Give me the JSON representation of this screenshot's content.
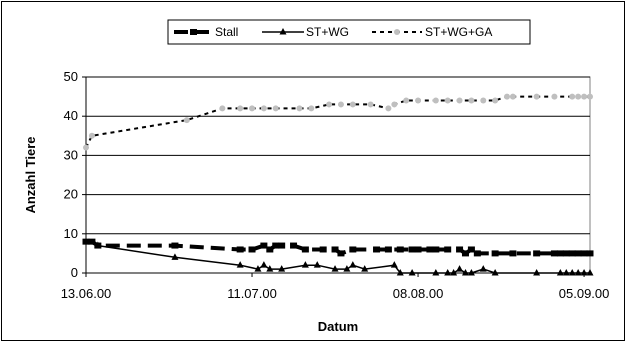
{
  "chart_data": {
    "type": "line",
    "xlabel": "Datum",
    "ylabel": "Anzahl Tiere",
    "ylim": [
      0,
      50
    ],
    "yticks": [
      "0",
      "10",
      "20",
      "30",
      "40",
      "50"
    ],
    "xlim": [
      "2000-06-13",
      "2000-09-06"
    ],
    "xticks": [
      "13.06.00",
      "11.07.00",
      "08.08.00",
      "05.09.00"
    ],
    "grid": "horizontal",
    "legend_position": "top",
    "series": [
      {
        "name": "Stall",
        "color": "#000000",
        "style": "thick-dash",
        "points": [
          [
            "2000-06-13",
            8
          ],
          [
            "2000-06-14",
            8
          ],
          [
            "2000-06-15",
            7
          ],
          [
            "2000-06-28",
            7
          ],
          [
            "2000-07-09",
            6
          ],
          [
            "2000-07-11",
            6
          ],
          [
            "2000-07-13",
            7
          ],
          [
            "2000-07-14",
            6
          ],
          [
            "2000-07-15",
            7
          ],
          [
            "2000-07-16",
            7
          ],
          [
            "2000-07-18",
            7
          ],
          [
            "2000-07-20",
            6
          ],
          [
            "2000-07-23",
            6
          ],
          [
            "2000-07-25",
            6
          ],
          [
            "2000-07-26",
            5
          ],
          [
            "2000-07-28",
            6
          ],
          [
            "2000-08-01",
            6
          ],
          [
            "2000-08-03",
            6
          ],
          [
            "2000-08-05",
            6
          ],
          [
            "2000-08-07",
            6
          ],
          [
            "2000-08-08",
            6
          ],
          [
            "2000-08-10",
            6
          ],
          [
            "2000-08-11",
            6
          ],
          [
            "2000-08-13",
            6
          ],
          [
            "2000-08-15",
            6
          ],
          [
            "2000-08-16",
            5
          ],
          [
            "2000-08-17",
            6
          ],
          [
            "2000-08-18",
            5
          ],
          [
            "2000-08-21",
            5
          ],
          [
            "2000-08-24",
            5
          ],
          [
            "2000-08-28",
            5
          ],
          [
            "2000-08-31",
            5
          ],
          [
            "2000-09-01",
            5
          ],
          [
            "2000-09-02",
            5
          ],
          [
            "2000-09-03",
            5
          ],
          [
            "2000-09-04",
            5
          ],
          [
            "2000-09-05",
            5
          ],
          [
            "2000-09-06",
            5
          ]
        ]
      },
      {
        "name": "ST+WG",
        "color": "#000000",
        "style": "solid-triangle",
        "points": [
          [
            "2000-06-13",
            8
          ],
          [
            "2000-06-15",
            7
          ],
          [
            "2000-06-28",
            4
          ],
          [
            "2000-07-09",
            2
          ],
          [
            "2000-07-12",
            1
          ],
          [
            "2000-07-13",
            2
          ],
          [
            "2000-07-14",
            1
          ],
          [
            "2000-07-16",
            1
          ],
          [
            "2000-07-20",
            2
          ],
          [
            "2000-07-22",
            2
          ],
          [
            "2000-07-25",
            1
          ],
          [
            "2000-07-27",
            1
          ],
          [
            "2000-07-28",
            2
          ],
          [
            "2000-07-30",
            1
          ],
          [
            "2000-08-04",
            2
          ],
          [
            "2000-08-05",
            0
          ],
          [
            "2000-08-07",
            0
          ],
          [
            "2000-08-11",
            0
          ],
          [
            "2000-08-13",
            0
          ],
          [
            "2000-08-14",
            0
          ],
          [
            "2000-08-15",
            1
          ],
          [
            "2000-08-16",
            0
          ],
          [
            "2000-08-17",
            0
          ],
          [
            "2000-08-19",
            1
          ],
          [
            "2000-08-21",
            0
          ],
          [
            "2000-08-28",
            0
          ],
          [
            "2000-09-01",
            0
          ],
          [
            "2000-09-02",
            0
          ],
          [
            "2000-09-03",
            0
          ],
          [
            "2000-09-04",
            0
          ],
          [
            "2000-09-05",
            0
          ],
          [
            "2000-09-06",
            0
          ]
        ]
      },
      {
        "name": "ST+WG+GA",
        "color": "#bfbfbf",
        "line_color": "#000000",
        "style": "dotted-circle",
        "points": [
          [
            "2000-06-13",
            32
          ],
          [
            "2000-06-14",
            35
          ],
          [
            "2000-06-30",
            39
          ],
          [
            "2000-07-06",
            42
          ],
          [
            "2000-07-09",
            42
          ],
          [
            "2000-07-11",
            42
          ],
          [
            "2000-07-13",
            42
          ],
          [
            "2000-07-15",
            42
          ],
          [
            "2000-07-19",
            42
          ],
          [
            "2000-07-21",
            42
          ],
          [
            "2000-07-24",
            43
          ],
          [
            "2000-07-26",
            43
          ],
          [
            "2000-07-28",
            43
          ],
          [
            "2000-07-31",
            43
          ],
          [
            "2000-08-03",
            42
          ],
          [
            "2000-08-04",
            43
          ],
          [
            "2000-08-06",
            44
          ],
          [
            "2000-08-08",
            44
          ],
          [
            "2000-08-11",
            44
          ],
          [
            "2000-08-13",
            44
          ],
          [
            "2000-08-15",
            44
          ],
          [
            "2000-08-17",
            44
          ],
          [
            "2000-08-19",
            44
          ],
          [
            "2000-08-21",
            44
          ],
          [
            "2000-08-23",
            45
          ],
          [
            "2000-08-24",
            45
          ],
          [
            "2000-08-28",
            45
          ],
          [
            "2000-08-31",
            45
          ],
          [
            "2000-09-03",
            45
          ],
          [
            "2000-09-04",
            45
          ],
          [
            "2000-09-05",
            45
          ],
          [
            "2000-09-06",
            45
          ]
        ]
      }
    ]
  }
}
